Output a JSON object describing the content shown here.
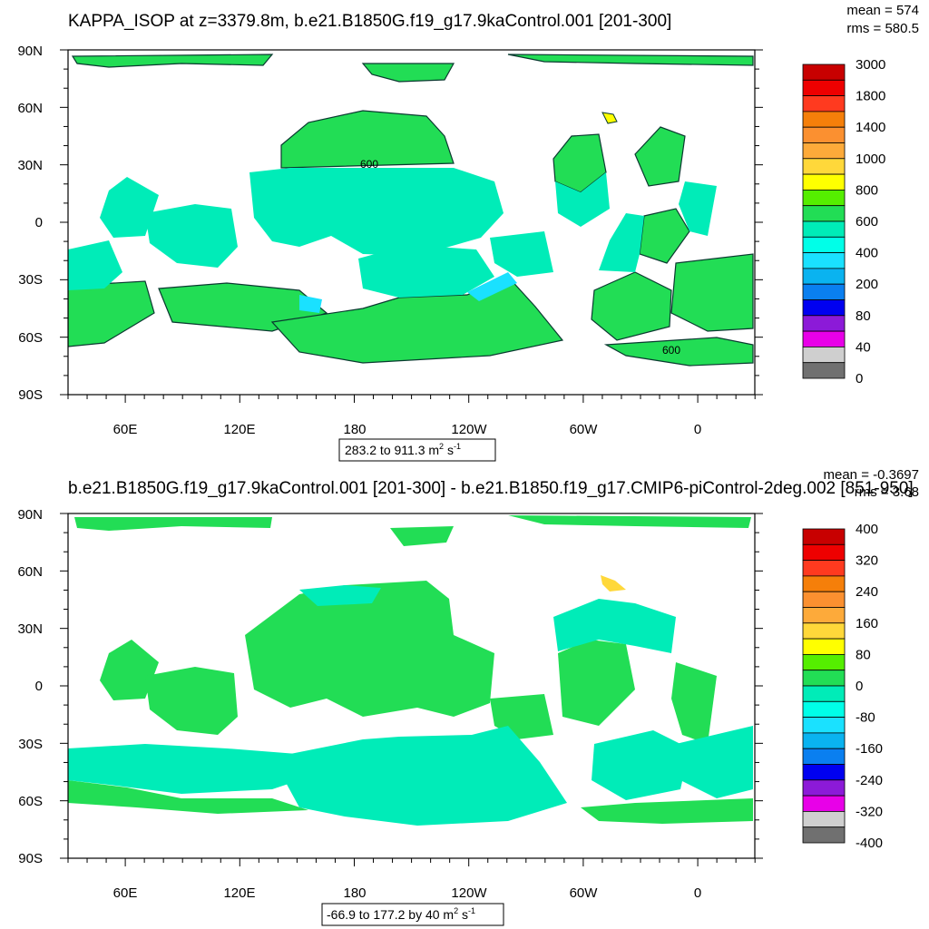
{
  "chart_data": [
    {
      "type": "heatmap",
      "title": "KAPPA_ISOP at z=3379.8m, b.e21.B1850G.f19_g17.9kaControl.001 [201-300]",
      "stats": {
        "mean": "mean = 574",
        "rms": "rms = 580.5"
      },
      "x_ticks": [
        "60E",
        "120E",
        "180",
        "120W",
        "60W",
        "0"
      ],
      "y_ticks": [
        "90N",
        "60N",
        "30N",
        "0",
        "30S",
        "60S",
        "90S"
      ],
      "range_label": {
        "text": "283.2 to 911.3 m",
        "sup1": "2",
        "mid": " s",
        "sup2": "-1"
      },
      "contour_labels": [
        "600",
        "600"
      ],
      "colorbar": {
        "labels": [
          "3000",
          "1800",
          "1400",
          "1000",
          "800",
          "600",
          "400",
          "200",
          "80",
          "40",
          "0"
        ],
        "colors": [
          "#c80000",
          "#ee0000",
          "#ff3a1f",
          "#f57f0a",
          "#fb9030",
          "#fdaa3a",
          "#ffd83a",
          "#ffff00",
          "#55ee00",
          "#22dd55",
          "#00ecb8",
          "#00ffe8",
          "#1ae1ff",
          "#0ab3f0",
          "#0a7ff0",
          "#0000f0",
          "#8c1ad8",
          "#e800e8",
          "#cfcfcf",
          "#707070"
        ]
      }
    },
    {
      "type": "heatmap",
      "title": "b.e21.B1850G.f19_g17.9kaControl.001 [201-300] - b.e21.B1850.f19_g17.CMIP6-piControl-2deg.002 [851-950]",
      "stats": {
        "mean": "mean = -0.3697",
        "rms": "rms = 3.68"
      },
      "x_ticks": [
        "60E",
        "120E",
        "180",
        "120W",
        "60W",
        "0"
      ],
      "y_ticks": [
        "90N",
        "60N",
        "30N",
        "0",
        "30S",
        "60S",
        "90S"
      ],
      "range_label": {
        "text": "-66.9 to 177.2 by 40 m",
        "sup1": "2",
        "mid": " s",
        "sup2": "-1"
      },
      "colorbar": {
        "labels": [
          "400",
          "320",
          "240",
          "160",
          "80",
          "0",
          "-80",
          "-160",
          "-240",
          "-320",
          "-400"
        ],
        "colors": [
          "#c80000",
          "#ee0000",
          "#ff3a1f",
          "#f57f0a",
          "#fb9030",
          "#fdaa3a",
          "#ffd83a",
          "#ffff00",
          "#55ee00",
          "#22dd55",
          "#00ecb8",
          "#00ffe8",
          "#1ae1ff",
          "#0ab3f0",
          "#0a7ff0",
          "#0000f0",
          "#8c1ad8",
          "#e800e8",
          "#cfcfcf",
          "#707070"
        ]
      }
    }
  ]
}
